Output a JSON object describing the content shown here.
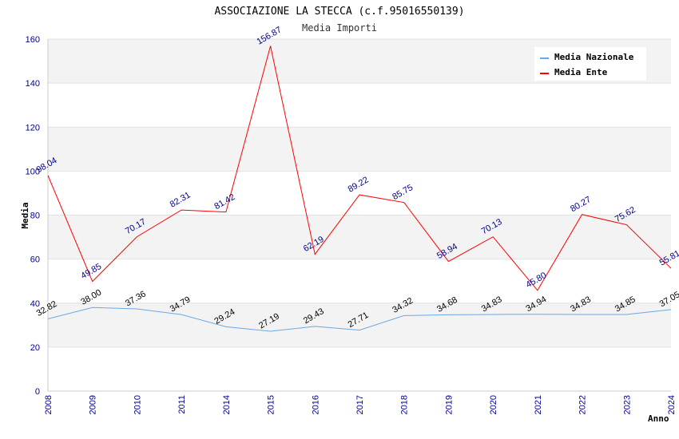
{
  "chart_data": {
    "type": "line",
    "title": "ASSOCIAZIONE LA STECCA (c.f.95016550139)",
    "subtitle": "Media Importi",
    "xlabel": "Anno",
    "ylabel": "Media",
    "ylim": [
      0,
      160
    ],
    "yticks": [
      0,
      20,
      40,
      60,
      80,
      100,
      120,
      140,
      160
    ],
    "categories": [
      "2008",
      "2009",
      "2010",
      "2011",
      "2014",
      "2015",
      "2016",
      "2017",
      "2018",
      "2019",
      "2020",
      "2021",
      "2022",
      "2023",
      "2024"
    ],
    "series": [
      {
        "name": "Media Nazionale",
        "color": "#6aa8e6",
        "label_color": "#000000",
        "values": [
          32.82,
          38.0,
          37.36,
          34.79,
          29.24,
          27.19,
          29.43,
          27.71,
          34.32,
          34.68,
          34.83,
          34.94,
          34.83,
          34.85,
          37.05
        ],
        "labels": [
          "32.82",
          "38.00",
          "37.36",
          "34.79",
          "29.24",
          "27.19",
          "29.43",
          "27.71",
          "34.32",
          "34.68",
          "34.83",
          "34.94",
          "34.83",
          "34.85",
          "37.05"
        ]
      },
      {
        "name": "Media Ente",
        "color": "#ff0000",
        "label_color": "#00008b",
        "values": [
          98.04,
          49.85,
          70.17,
          82.31,
          81.42,
          156.87,
          62.19,
          89.22,
          85.75,
          58.94,
          70.13,
          45.8,
          80.27,
          75.62,
          55.81
        ],
        "labels": [
          "98.04",
          "49.85",
          "70.17",
          "82.31",
          "81.42",
          "156.87",
          "62.19",
          "89.22",
          "85.75",
          "58.94",
          "70.13",
          "45.80",
          "80.27",
          "75.62",
          "55.81"
        ]
      }
    ],
    "grid": true,
    "legend_position": "top-right",
    "band_colors": [
      "#f3f3f3",
      "#ffffff"
    ]
  }
}
